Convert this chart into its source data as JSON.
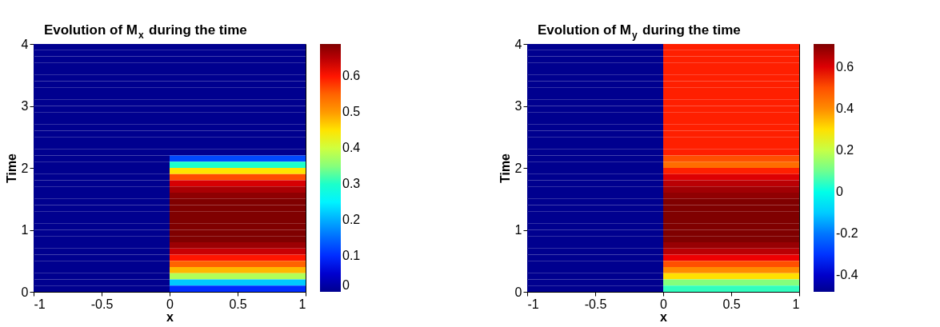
{
  "chart_data": [
    {
      "type": "heatmap",
      "title": "Evolution of M$_{x}$ during the time",
      "xlabel": "x",
      "ylabel": "Time",
      "xlim": [
        -1,
        1
      ],
      "ylim": [
        0,
        4
      ],
      "xticks": [
        -1,
        -0.5,
        0,
        0.5,
        1
      ],
      "yticks": [
        0,
        1,
        2,
        3,
        4
      ],
      "clim": [
        0,
        0.69
      ],
      "cticks": [
        0,
        0.1,
        0.2,
        0.3,
        0.4,
        0.5,
        0.6
      ],
      "grid": false,
      "cells": [
        [
          0,
          0
        ],
        [
          0,
          0
        ],
        [
          0,
          0
        ],
        [
          0,
          0
        ],
        [
          0,
          0
        ],
        [
          0,
          0
        ],
        [
          0,
          0
        ],
        [
          0,
          0
        ],
        [
          0,
          0
        ],
        [
          0,
          0
        ],
        [
          0,
          0
        ],
        [
          0,
          0
        ],
        [
          0,
          0
        ],
        [
          0,
          0
        ],
        [
          0,
          0
        ],
        [
          0,
          0
        ],
        [
          0,
          0
        ],
        [
          0,
          0
        ],
        [
          0,
          0.12
        ],
        [
          0,
          0.3
        ],
        [
          0,
          0.45
        ],
        [
          0,
          0.57
        ],
        [
          0,
          0.63
        ],
        [
          0,
          0.66
        ],
        [
          0,
          0.68
        ],
        [
          0,
          0.69
        ],
        [
          0,
          0.69
        ],
        [
          0,
          0.69
        ],
        [
          0,
          0.69
        ],
        [
          0,
          0.69
        ],
        [
          0,
          0.69
        ],
        [
          0,
          0.69
        ],
        [
          0,
          0.67
        ],
        [
          0,
          0.64
        ],
        [
          0,
          0.6
        ],
        [
          0,
          0.55
        ],
        [
          0,
          0.48
        ],
        [
          0,
          0.38
        ],
        [
          0,
          0.22
        ],
        [
          0,
          0.1
        ]
      ]
    },
    {
      "type": "heatmap",
      "title": "Evolution of M$_{y}$ during the time",
      "xlabel": "x",
      "ylabel": "Time",
      "xlim": [
        -1,
        1
      ],
      "ylim": [
        0,
        4
      ],
      "xticks": [
        -1,
        -0.5,
        0,
        0.5,
        1
      ],
      "yticks": [
        0,
        1,
        2,
        3,
        4
      ],
      "clim": [
        -0.48,
        0.71
      ],
      "cticks": [
        -0.4,
        -0.2,
        0,
        0.2,
        0.4,
        0.6
      ],
      "grid": false,
      "cells": [
        [
          -0.48,
          0.55
        ],
        [
          -0.48,
          0.55
        ],
        [
          -0.48,
          0.55
        ],
        [
          -0.48,
          0.55
        ],
        [
          -0.48,
          0.55
        ],
        [
          -0.48,
          0.55
        ],
        [
          -0.48,
          0.55
        ],
        [
          -0.48,
          0.55
        ],
        [
          -0.48,
          0.55
        ],
        [
          -0.48,
          0.55
        ],
        [
          -0.48,
          0.55
        ],
        [
          -0.48,
          0.55
        ],
        [
          -0.48,
          0.55
        ],
        [
          -0.48,
          0.55
        ],
        [
          -0.48,
          0.55
        ],
        [
          -0.48,
          0.55
        ],
        [
          -0.48,
          0.55
        ],
        [
          -0.48,
          0.55
        ],
        [
          -0.48,
          0.5
        ],
        [
          -0.48,
          0.45
        ],
        [
          -0.48,
          0.55
        ],
        [
          -0.48,
          0.6
        ],
        [
          -0.48,
          0.64
        ],
        [
          -0.48,
          0.67
        ],
        [
          -0.48,
          0.69
        ],
        [
          -0.48,
          0.71
        ],
        [
          -0.48,
          0.71
        ],
        [
          -0.48,
          0.71
        ],
        [
          -0.48,
          0.71
        ],
        [
          -0.48,
          0.71
        ],
        [
          -0.48,
          0.71
        ],
        [
          -0.48,
          0.71
        ],
        [
          -0.48,
          0.68
        ],
        [
          -0.48,
          0.64
        ],
        [
          -0.48,
          0.58
        ],
        [
          -0.48,
          0.5
        ],
        [
          -0.48,
          0.4
        ],
        [
          -0.48,
          0.3
        ],
        [
          -0.48,
          0.12
        ],
        [
          -0.48,
          0.05
        ]
      ]
    }
  ]
}
